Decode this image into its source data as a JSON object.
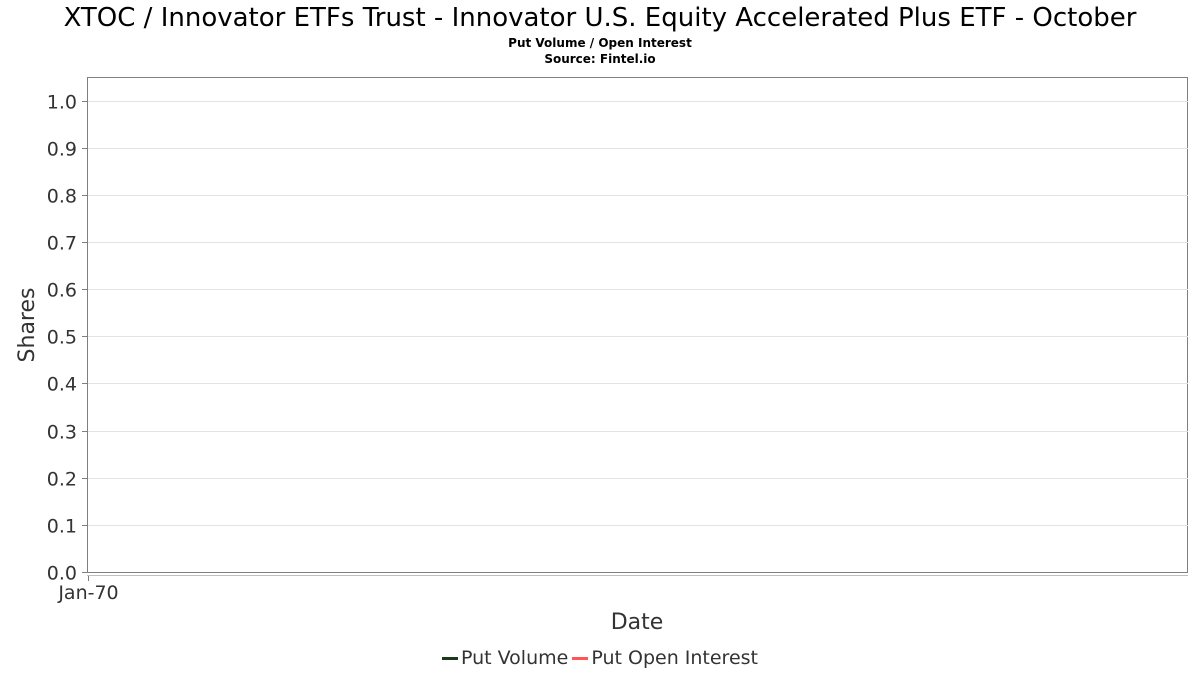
{
  "chart_data": {
    "type": "line",
    "title": "XTOC / Innovator ETFs Trust - Innovator U.S. Equity Accelerated Plus ETF - October",
    "subtitle": "Put Volume / Open Interest",
    "source": "Source: Fintel.io",
    "xlabel": "Date",
    "ylabel": "Shares",
    "x_ticks": [
      "Jan-70"
    ],
    "y_ticks": [
      "0.0",
      "0.1",
      "0.2",
      "0.3",
      "0.4",
      "0.5",
      "0.6",
      "0.7",
      "0.8",
      "0.9",
      "1.0"
    ],
    "ylim": [
      0,
      1.05
    ],
    "grid": true,
    "legend_position": "bottom",
    "series": [
      {
        "name": "Put Volume",
        "color": "#1a3a1a",
        "values": []
      },
      {
        "name": "Put Open Interest",
        "color": "#ff5555",
        "values": []
      }
    ]
  }
}
